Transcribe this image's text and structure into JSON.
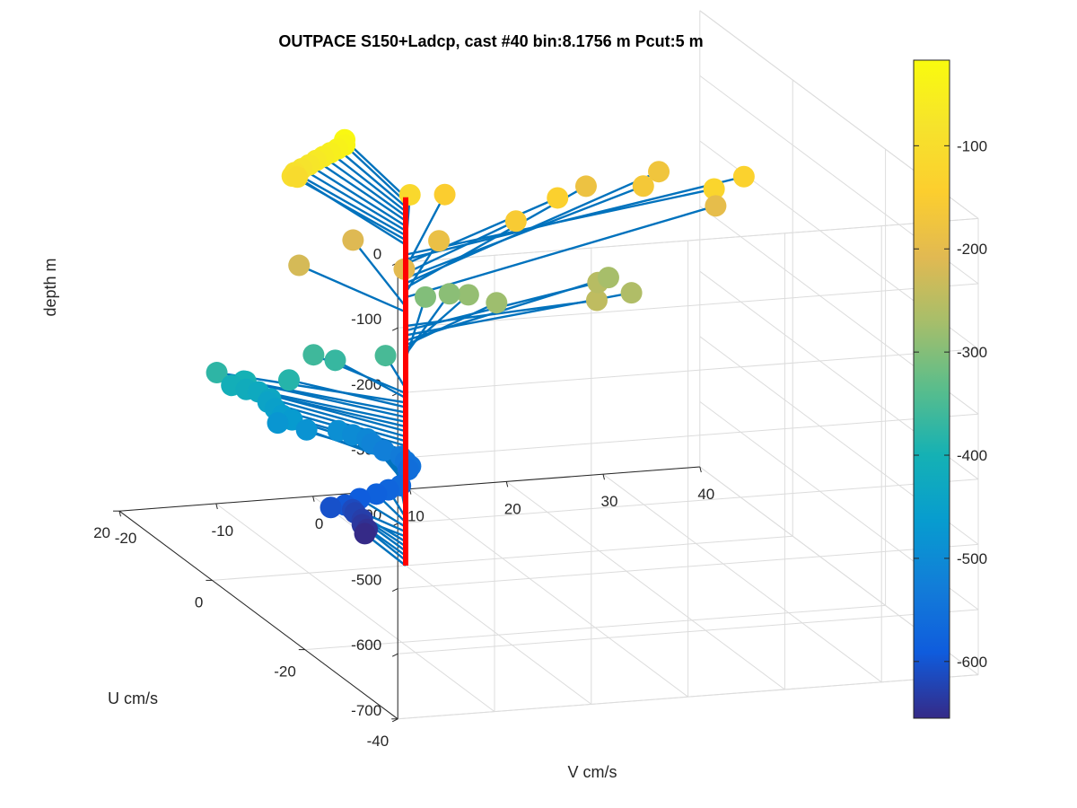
{
  "colors": {
    "stick": "#0072BD",
    "profile_line": "#FF0000",
    "grid": "#DCDCDC",
    "axis": "#262626",
    "colorbar_scale": "parula"
  },
  "chart_data": {
    "type": "scatter3d-stick",
    "title": "OUTPACE S150+Ladcp, cast #40 bin:8.1756 m  Pcut:5 m",
    "xlabel": "V cm/s",
    "ylabel": "U cm/s",
    "zlabel": "depth m",
    "xlim": [
      -20,
      40
    ],
    "ylim": [
      -40,
      20
    ],
    "zlim": [
      -700,
      0
    ],
    "x_ticks": [
      -20,
      -10,
      0,
      10,
      20,
      30,
      40
    ],
    "y_ticks": [
      -40,
      -20,
      0,
      20
    ],
    "z_ticks": [
      0,
      -100,
      -200,
      -300,
      -400,
      -500,
      -600,
      -700
    ],
    "colorbar": {
      "range": [
        -655,
        -17
      ],
      "ticks": [
        -100,
        -200,
        -300,
        -400,
        -500,
        -600
      ]
    },
    "grid": true,
    "profile": {
      "x": 0,
      "y": 0,
      "z_top": -135,
      "z_bottom": -700
    },
    "points": [
      {
        "depth": -25,
        "v": -7.5,
        "u": -2.5
      },
      {
        "depth": -33,
        "v": -7.5,
        "u": -2.5
      },
      {
        "depth": -41,
        "v": -8.0,
        "u": -2.0
      },
      {
        "depth": -49,
        "v": -8.5,
        "u": -1.5
      },
      {
        "depth": -57,
        "v": -9.0,
        "u": -1.0
      },
      {
        "depth": -65,
        "v": -9.5,
        "u": -0.5
      },
      {
        "depth": -74,
        "v": -10.0,
        "u": 0.0
      },
      {
        "depth": -82,
        "v": -10.5,
        "u": 0.5
      },
      {
        "depth": -90,
        "v": -11.0,
        "u": 1.0
      },
      {
        "depth": -98,
        "v": -11.0,
        "u": 1.5
      },
      {
        "depth": -106,
        "v": -10.0,
        "u": 2.5
      },
      {
        "depth": -114,
        "v": -1.0,
        "u": -3.0
      },
      {
        "depth": -123,
        "v": 29.0,
        "u": -6.0
      },
      {
        "depth": -131,
        "v": 34.0,
        "u": -2.0
      },
      {
        "depth": -139,
        "v": 14.5,
        "u": -2.5
      },
      {
        "depth": -147,
        "v": 5.0,
        "u": 2.0
      },
      {
        "depth": -155,
        "v": 9.0,
        "u": -5.0
      },
      {
        "depth": -163,
        "v": 26.0,
        "u": 3.0
      },
      {
        "depth": -172,
        "v": 30.0,
        "u": 8.0
      },
      {
        "depth": -180,
        "v": 22.0,
        "u": 7.0
      },
      {
        "depth": -188,
        "v": 2.0,
        "u": -3.0
      },
      {
        "depth": -196,
        "v": 33.0,
        "u": 2.0
      },
      {
        "depth": -204,
        "v": -3.5,
        "u": -7.0
      },
      {
        "depth": -212,
        "v": -4.0,
        "u": 3.0
      },
      {
        "depth": -221,
        "v": -11.5,
        "u": -1.0
      },
      {
        "depth": -245,
        "v": 14.0,
        "u": -12.0
      },
      {
        "depth": -253,
        "v": 17.0,
        "u": -6.0
      },
      {
        "depth": -261,
        "v": 19.5,
        "u": -8.0
      },
      {
        "depth": -270,
        "v": 20.0,
        "u": -2.0
      },
      {
        "depth": -278,
        "v": 7.0,
        "u": -5.0
      },
      {
        "depth": -286,
        "v": 6.0,
        "u": -1.0
      },
      {
        "depth": -294,
        "v": 5.0,
        "u": 1.0
      },
      {
        "depth": -302,
        "v": 3.0,
        "u": 2.0
      },
      {
        "depth": -352,
        "v": -4.0,
        "u": -4.0
      },
      {
        "depth": -360,
        "v": -10.0,
        "u": -1.0
      },
      {
        "depth": -368,
        "v": -8.0,
        "u": -1.5
      },
      {
        "depth": -376,
        "v": -20.0,
        "u": -1.0
      },
      {
        "depth": -384,
        "v": -13.5,
        "u": -3.0
      },
      {
        "depth": -393,
        "v": -17.0,
        "u": -1.0
      },
      {
        "depth": -401,
        "v": -16.5,
        "u": 0.5
      },
      {
        "depth": -409,
        "v": -17.5,
        "u": 1.0
      },
      {
        "depth": -417,
        "v": -16.0,
        "u": 1.0
      },
      {
        "depth": -425,
        "v": -14.5,
        "u": 1.5
      },
      {
        "depth": -434,
        "v": -13.5,
        "u": 1.0
      },
      {
        "depth": -442,
        "v": -13.5,
        "u": 1.5
      },
      {
        "depth": -450,
        "v": -13.0,
        "u": 1.0
      },
      {
        "depth": -458,
        "v": -12.5,
        "u": 0.5
      },
      {
        "depth": -466,
        "v": -11.5,
        "u": 0.5
      },
      {
        "depth": -475,
        "v": -12.5,
        "u": 1.5
      },
      {
        "depth": -483,
        "v": -10.0,
        "u": 0.5
      },
      {
        "depth": -491,
        "v": -6.5,
        "u": 1.0
      },
      {
        "depth": -499,
        "v": -5.0,
        "u": 1.0
      },
      {
        "depth": -507,
        "v": -3.5,
        "u": 1.0
      },
      {
        "depth": -515,
        "v": -3.0,
        "u": 1.0
      },
      {
        "depth": -524,
        "v": -2.0,
        "u": 0.5
      },
      {
        "depth": -532,
        "v": -0.5,
        "u": 0.0
      },
      {
        "depth": -540,
        "v": 0.0,
        "u": 0.0
      },
      {
        "depth": -548,
        "v": 0.5,
        "u": 0.0
      },
      {
        "depth": -556,
        "v": 0.5,
        "u": 0.5
      },
      {
        "depth": -565,
        "v": -1.5,
        "u": -2.0
      },
      {
        "depth": -573,
        "v": -2.5,
        "u": -1.5
      },
      {
        "depth": -581,
        "v": -3.5,
        "u": -1.0
      },
      {
        "depth": -589,
        "v": -5.0,
        "u": -0.5
      },
      {
        "depth": -597,
        "v": -6.5,
        "u": -0.5
      },
      {
        "depth": -605,
        "v": -7.5,
        "u": 0.5
      },
      {
        "depth": -614,
        "v": -5.0,
        "u": 1.0
      },
      {
        "depth": -622,
        "v": -4.5,
        "u": 1.5
      },
      {
        "depth": -630,
        "v": -4.0,
        "u": 1.0
      },
      {
        "depth": -638,
        "v": -4.0,
        "u": 1.0
      },
      {
        "depth": -646,
        "v": -3.5,
        "u": 1.0
      },
      {
        "depth": -655,
        "v": -3.5,
        "u": 1.5
      }
    ]
  }
}
